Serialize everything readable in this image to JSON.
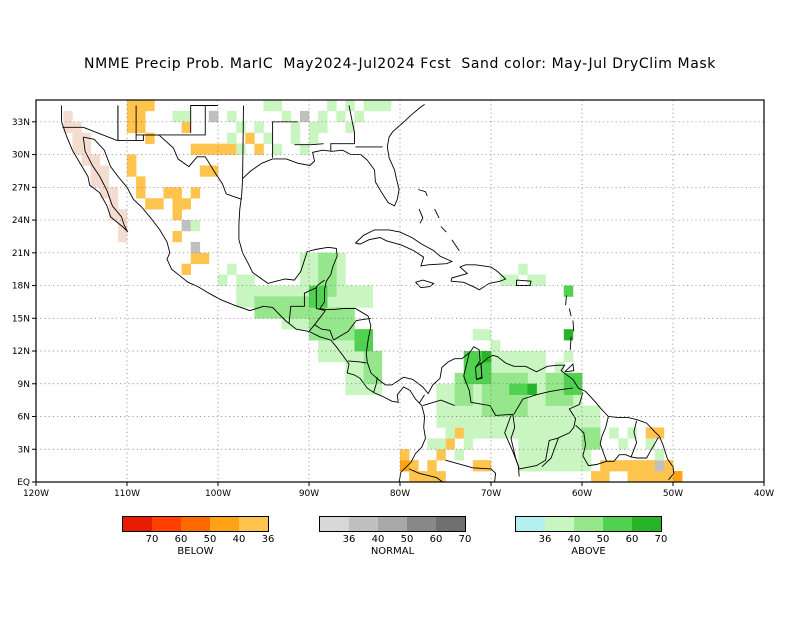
{
  "title": "NMME Precip Prob. MarIC  May2024-Jul2024 Fcst  Sand color: May-Jul DryClim Mask",
  "map": {
    "lon_range": [
      -120,
      -40
    ],
    "lat_range": [
      0,
      35
    ],
    "lon_ticks": [
      -120,
      -110,
      -100,
      -90,
      -80,
      -70,
      -60,
      -50,
      -40
    ],
    "lon_tick_labels": [
      "120W",
      "110W",
      "100W",
      "90W",
      "80W",
      "70W",
      "60W",
      "50W",
      "40W"
    ],
    "lat_ticks": [
      0,
      3,
      6,
      9,
      12,
      15,
      18,
      21,
      24,
      27,
      30,
      33
    ],
    "lat_tick_labels": [
      "EQ",
      "3N",
      "6N",
      "9N",
      "12N",
      "15N",
      "18N",
      "21N",
      "24N",
      "27N",
      "30N",
      "33N"
    ],
    "grid": "dotted",
    "colors": {
      "dry_mask": "#f4dcd0",
      "below_36": "#ffc44e",
      "below_40": "#ffa316",
      "below_50": "#ff6a00",
      "below_60": "#ff4000",
      "below_70": "#e81a00",
      "normal_36": "#d8d8d8",
      "normal_40": "#c0c0c0",
      "normal_50": "#a8a8a8",
      "normal_60": "#888888",
      "normal_70": "#707070",
      "above_36": "#b4f0f0",
      "above_40": "#c8f5c0",
      "above_50": "#96e68c",
      "above_60": "#50d250",
      "above_70": "#28b428"
    }
  },
  "legend": {
    "below": {
      "label": "BELOW",
      "colors": [
        "#e81a00",
        "#ff4000",
        "#ff6a00",
        "#ffa316",
        "#ffc44e"
      ],
      "ticks": [
        "70",
        "60",
        "50",
        "40",
        "36"
      ]
    },
    "normal": {
      "label": "NORMAL",
      "colors": [
        "#d8d8d8",
        "#c0c0c0",
        "#a8a8a8",
        "#888888",
        "#707070"
      ],
      "ticks": [
        "36",
        "40",
        "50",
        "60",
        "70"
      ]
    },
    "above": {
      "label": "ABOVE",
      "colors": [
        "#b4f0f0",
        "#c8f5c0",
        "#96e68c",
        "#50d250",
        "#28b428"
      ],
      "ticks": [
        "36",
        "40",
        "50",
        "60",
        "70"
      ]
    }
  }
}
